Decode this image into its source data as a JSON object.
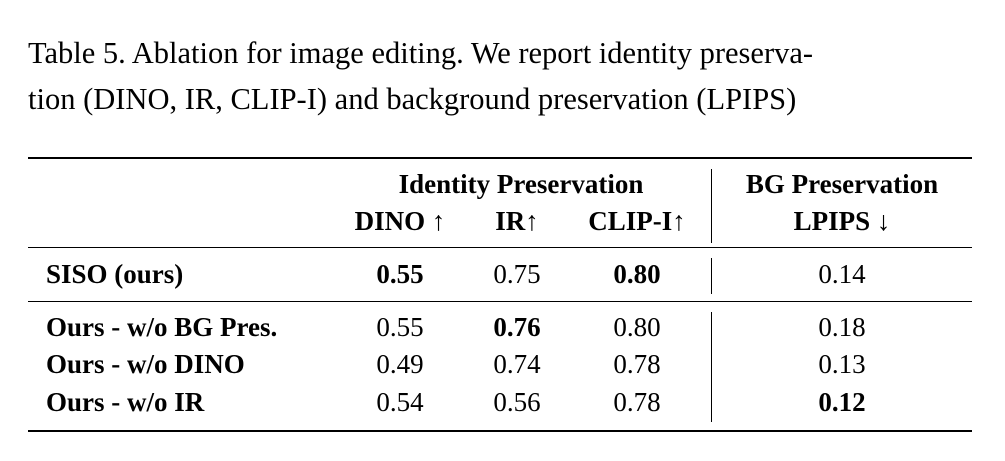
{
  "caption": {
    "line1": "Table 5. Ablation for image editing. We report identity preserva-",
    "line2": "tion (DINO, IR, CLIP-I) and background preservation (LPIPS)"
  },
  "table": {
    "group_headers": {
      "identity": "Identity Preservation",
      "bg": "BG Preservation"
    },
    "columns": [
      "DINO ↑",
      "IR↑",
      "CLIP-I↑",
      "LPIPS ↓"
    ],
    "rows": [
      {
        "method": "SISO (ours)",
        "dino": "0.55",
        "ir": "0.75",
        "clip": "0.80",
        "lpips": "0.14"
      },
      {
        "method": "Ours - w/o BG Pres.",
        "dino": "0.55",
        "ir": "0.76",
        "clip": "0.80",
        "lpips": "0.18"
      },
      {
        "method": "Ours - w/o DINO",
        "dino": "0.49",
        "ir": "0.74",
        "clip": "0.78",
        "lpips": "0.13"
      },
      {
        "method": "Ours - w/o IR",
        "dino": "0.54",
        "ir": "0.56",
        "clip": "0.78",
        "lpips": "0.12"
      }
    ]
  }
}
